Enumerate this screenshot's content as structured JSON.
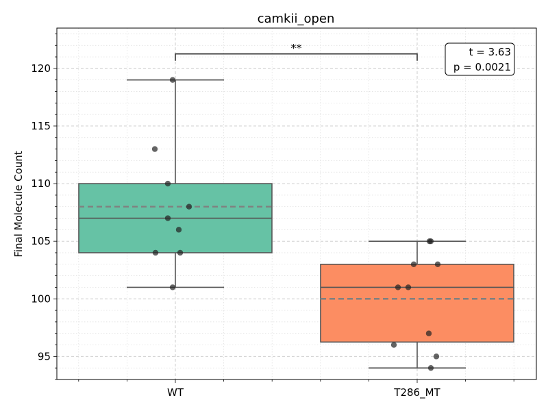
{
  "chart_data": {
    "type": "box",
    "title": "camkii_open",
    "xlabel": "",
    "ylabel": "Final Molecule Count",
    "ylim": [
      93,
      123.5
    ],
    "yticks": [
      95,
      100,
      105,
      110,
      115,
      120
    ],
    "grid": true,
    "categories": [
      "WT",
      "T286_MT"
    ],
    "colors": {
      "WT": "#66c2a5",
      "T286_MT": "#fc8d62",
      "mean_line": "#808080",
      "box_edge": "#555555",
      "points": "#222222"
    },
    "groups": [
      {
        "name": "WT",
        "whisker_low": 101,
        "q1": 104,
        "median": 107,
        "q3": 110,
        "whisker_high": 119,
        "mean": 108,
        "points": [
          119,
          113,
          110,
          108,
          107,
          106,
          104,
          104,
          101
        ]
      },
      {
        "name": "T286_MT",
        "whisker_low": 94,
        "q1": 96.25,
        "median": 101,
        "q3": 103,
        "whisker_high": 105,
        "mean": 100,
        "points": [
          105,
          105,
          103,
          103,
          101,
          101,
          97,
          96,
          95,
          94
        ]
      }
    ],
    "significance": {
      "label": "**",
      "from": "WT",
      "to": "T286_MT"
    },
    "stats_box": {
      "line1": "t = 3.63",
      "line2": "p = 0.0021",
      "position": "top-right"
    }
  }
}
